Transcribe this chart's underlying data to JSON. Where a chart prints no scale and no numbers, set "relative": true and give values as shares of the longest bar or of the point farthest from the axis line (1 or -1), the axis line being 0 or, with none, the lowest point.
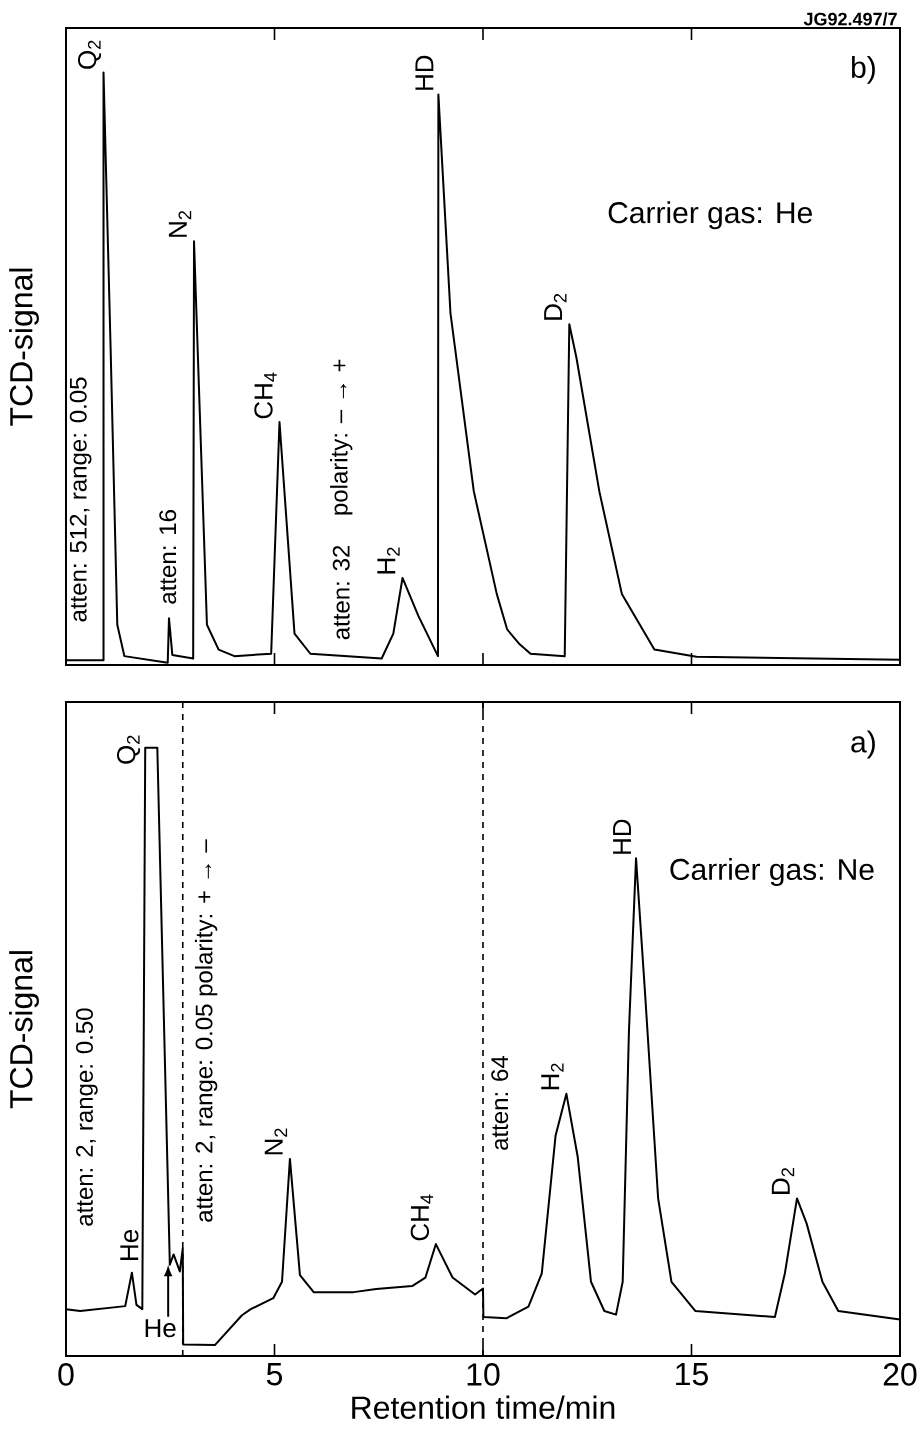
{
  "chart_data": [
    {
      "type": "line",
      "relative": true,
      "ylabel": "TCD-signal",
      "xlim": [
        0,
        20
      ],
      "xticks": [
        0,
        5,
        10,
        15,
        20
      ],
      "tick_labels": false,
      "color": "#000000",
      "x": [
        0,
        0.9,
        0.9,
        1.07,
        1.23,
        1.4,
        2.44,
        2.47,
        2.55,
        3.05,
        3.07,
        3.38,
        3.66,
        4.04,
        4.92,
        5.12,
        5.48,
        5.86,
        7.57,
        7.85,
        8.07,
        8.45,
        8.92,
        8.93,
        9.22,
        9.78,
        10.33,
        10.58,
        10.88,
        11.14,
        11.96,
        12.07,
        12.24,
        12.79,
        13.33,
        14.11,
        15.12,
        20
      ],
      "values": [
        0.008,
        0.008,
        1.0,
        0.534,
        0.068,
        0.015,
        0.004,
        0.079,
        0.017,
        0.011,
        0.715,
        0.068,
        0.026,
        0.015,
        0.019,
        0.41,
        0.053,
        0.019,
        0.011,
        0.053,
        0.147,
        0.083,
        0.015,
        0.963,
        0.594,
        0.293,
        0.12,
        0.06,
        0.035,
        0.019,
        0.015,
        0.575,
        0.519,
        0.293,
        0.12,
        0.026,
        0.014,
        0.009
      ],
      "annotations": [
        "JG92.497/7",
        "b)",
        "Carrier gas: He",
        {
          "text": "Q$_{2}$",
          "x": 0.9,
          "y": 1.0
        },
        {
          "text": "N$_{2}$",
          "x": 3.07,
          "y": 0.715
        },
        {
          "text": "CH$_{4}$",
          "x": 5.12,
          "y": 0.41
        },
        {
          "text": "H$_{2}$",
          "x": 8.07,
          "y": 0.147
        },
        {
          "text": "HD",
          "x": 8.93,
          "y": 0.963
        },
        {
          "text": "D$_{2}$",
          "x": 12.07,
          "y": 0.575
        },
        "atten: 512, range: 0.05",
        "atten: 16",
        "atten: 32",
        "polarity: – → +"
      ]
    },
    {
      "type": "line",
      "relative": true,
      "xlabel": "Retention time/min",
      "ylabel": "TCD-signal",
      "xlim": [
        0,
        20
      ],
      "xticks": [
        0,
        5,
        10,
        15,
        20
      ],
      "tick_labels": "x",
      "color": "#000000",
      "x": [
        0,
        0.34,
        1.42,
        1.58,
        1.69,
        1.83,
        1.9,
        2.19,
        2.49,
        2.58,
        2.73,
        2.8,
        2.81,
        3.57,
        4.22,
        4.43,
        4.97,
        5.18,
        5.37,
        5.61,
        5.94,
        6.9,
        7.44,
        8.3,
        8.62,
        8.87,
        9.27,
        9.81,
        10.0,
        10.01,
        10.56,
        11.09,
        11.41,
        11.74,
        12.0,
        12.27,
        12.59,
        12.91,
        13.19,
        13.35,
        13.5,
        13.67,
        13.88,
        14.2,
        14.52,
        15.09,
        17.0,
        17.24,
        17.53,
        17.76,
        18.14,
        18.52,
        20
      ],
      "values": [
        0.077,
        0.074,
        0.082,
        0.137,
        0.084,
        0.077,
        1.0,
        1.0,
        0.15,
        0.167,
        0.139,
        0.177,
        0.019,
        0.018,
        0.067,
        0.077,
        0.095,
        0.122,
        0.324,
        0.133,
        0.105,
        0.105,
        0.11,
        0.115,
        0.129,
        0.184,
        0.129,
        0.101,
        0.111,
        0.064,
        0.062,
        0.081,
        0.136,
        0.362,
        0.431,
        0.328,
        0.122,
        0.074,
        0.068,
        0.122,
        0.534,
        0.818,
        0.603,
        0.259,
        0.122,
        0.074,
        0.064,
        0.136,
        0.259,
        0.218,
        0.122,
        0.074,
        0.06
      ],
      "ref_lines": [
        {
          "axis": "x",
          "value": 2.8,
          "line_style": "dashed"
        },
        {
          "axis": "x",
          "value": 10,
          "line_style": "dashed"
        }
      ],
      "annotations": [
        "a)",
        "Carrier gas: Ne",
        "Q$_{2}$",
        "He",
        {
          "text": "He",
          "x": 2.45,
          "y": 0.15
        },
        {
          "text": "N$_{2}$",
          "x": 5.37,
          "y": 0.324
        },
        {
          "text": "CH$_{4}$",
          "x": 8.87,
          "y": 0.184
        },
        {
          "text": "H$_{2}$",
          "x": 12.0,
          "y": 0.431
        },
        {
          "text": "HD",
          "x": 13.67,
          "y": 0.818
        },
        {
          "text": "D$_{2}$",
          "x": 17.53,
          "y": 0.259
        },
        "atten: 2, range: 0.50",
        "atten: 2, range: 0.05 polarity: + → –",
        "atten: 64"
      ]
    }
  ]
}
